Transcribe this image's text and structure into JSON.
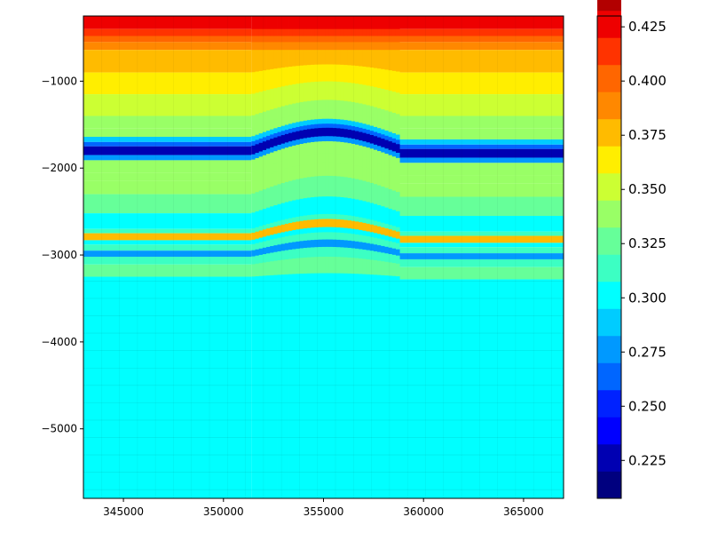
{
  "chart_data": {
    "type": "heatmap",
    "title": "",
    "xlabel": "",
    "ylabel": "",
    "xlim": [
      343000,
      367000
    ],
    "ylim": [
      -5800,
      -250
    ],
    "x_ticks": [
      345000,
      350000,
      355000,
      360000,
      365000
    ],
    "x_tick_labels": [
      "345000",
      "350000",
      "355000",
      "360000",
      "365000"
    ],
    "y_ticks": [
      -1000,
      -2000,
      -3000,
      -4000,
      -5000
    ],
    "y_tick_labels": [
      "−1000",
      "−2000",
      "−3000",
      "−4000",
      "−5000"
    ],
    "grid": false,
    "colorbar": {
      "colormap": "jet",
      "min": 0.2075,
      "max": 0.43,
      "step": 0.0125,
      "ticks": [
        0.225,
        0.25,
        0.275,
        0.3,
        0.325,
        0.35,
        0.375,
        0.4,
        0.425
      ],
      "tick_labels": [
        "0.225",
        "0.250",
        "0.275",
        "0.300",
        "0.325",
        "0.350",
        "0.375",
        "0.400",
        "0.425"
      ],
      "colors": [
        "#00007f",
        "#0000b2",
        "#0000ff",
        "#0022ff",
        "#0066ff",
        "#0099ff",
        "#00ccff",
        "#00ffff",
        "#3cffc3",
        "#66ff99",
        "#99ff66",
        "#ccff33",
        "#ffee00",
        "#ffbb00",
        "#ff8800",
        "#ff6600",
        "#ff3300",
        "#ee0000",
        "#b20000",
        "#7f0000"
      ]
    },
    "regions": {
      "left_x": [
        343000,
        351400
      ],
      "center_x": [
        351400,
        358800
      ],
      "right_x": [
        358800,
        367000
      ],
      "anticline_peak_x": 355200
    },
    "layers": [
      {
        "top": -250,
        "bottom": -400,
        "value": 0.43
      },
      {
        "top": -400,
        "bottom": -480,
        "value": 0.415
      },
      {
        "top": -480,
        "bottom": -550,
        "value": 0.395
      },
      {
        "top": -550,
        "bottom": -640,
        "value": 0.385
      },
      {
        "top": -640,
        "bottom": -900,
        "value": 0.375
      },
      {
        "top": -900,
        "bottom": -1150,
        "value": 0.365
      },
      {
        "top": -1150,
        "bottom": -1400,
        "value": 0.355
      },
      {
        "top": -1400,
        "bottom": -1540,
        "value": 0.345
      },
      {
        "top": -1540,
        "bottom": -1640,
        "value": 0.34
      },
      {
        "top": -1640,
        "bottom": -1700,
        "value": 0.29
      },
      {
        "top": -1700,
        "bottom": -1750,
        "value": 0.265
      },
      {
        "top": -1750,
        "bottom": -1850,
        "value": 0.225
      },
      {
        "top": -1850,
        "bottom": -1910,
        "value": 0.27
      },
      {
        "top": -1910,
        "bottom": -2050,
        "value": 0.345
      },
      {
        "top": -2050,
        "bottom": -2150,
        "value": 0.335
      },
      {
        "top": -2150,
        "bottom": -2300,
        "value": 0.335
      },
      {
        "top": -2300,
        "bottom": -2520,
        "value": 0.32
      },
      {
        "top": -2520,
        "bottom": -2700,
        "value": 0.305
      },
      {
        "top": -2700,
        "bottom": -2750,
        "value": 0.315
      },
      {
        "top": -2750,
        "bottom": -2830,
        "value": 0.38
      },
      {
        "top": -2830,
        "bottom": -2880,
        "value": 0.3
      },
      {
        "top": -2880,
        "bottom": -2950,
        "value": 0.31
      },
      {
        "top": -2950,
        "bottom": -3020,
        "value": 0.28
      },
      {
        "top": -3020,
        "bottom": -3110,
        "value": 0.31
      },
      {
        "top": -3110,
        "bottom": -3250,
        "value": 0.33
      },
      {
        "top": -3250,
        "bottom": -5800,
        "value": 0.305
      }
    ]
  }
}
